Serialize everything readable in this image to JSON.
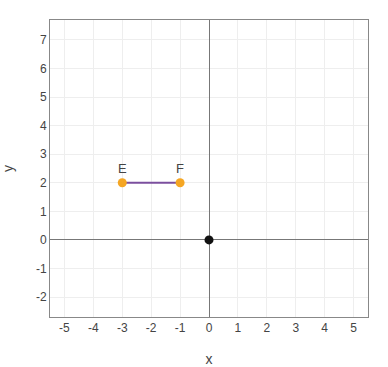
{
  "chart_data": {
    "type": "scatter",
    "xlabel": "x",
    "ylabel": "y",
    "series": [
      {
        "type": "line",
        "x": [
          -3,
          -1
        ],
        "values": [
          2,
          2
        ],
        "color": "#7B4F9E",
        "marker": "none",
        "line_style": "solid"
      },
      {
        "type": "scatter",
        "x": [
          -3,
          -1
        ],
        "values": [
          2,
          2
        ],
        "color": "#F5A623",
        "marker": "circle"
      },
      {
        "type": "scatter",
        "x": [
          0
        ],
        "values": [
          0
        ],
        "color": "#111111",
        "marker": "circle"
      }
    ],
    "annotations": [
      {
        "text": "E",
        "x": -3,
        "y": 2
      },
      {
        "text": "F",
        "x": -1,
        "y": 2
      }
    ],
    "xlim": [
      -5.5,
      5.5
    ],
    "ylim": [
      -2.7,
      7.7
    ],
    "xticks": [
      -5,
      -4,
      -3,
      -2,
      -1,
      0,
      1,
      2,
      3,
      4,
      5
    ],
    "yticks": [
      -2,
      -1,
      0,
      1,
      2,
      3,
      4,
      5,
      6,
      7
    ],
    "grid": true
  }
}
